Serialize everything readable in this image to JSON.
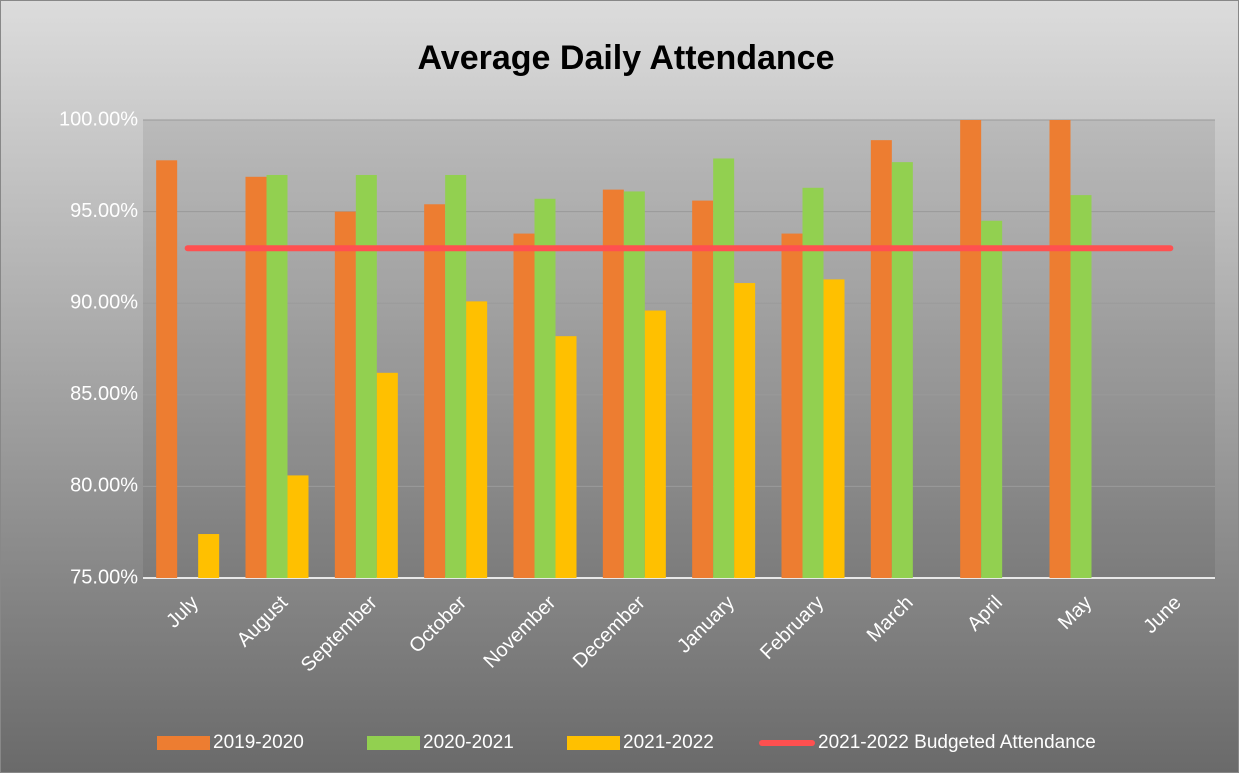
{
  "chart_data": {
    "type": "bar",
    "title": "Average Daily Attendance",
    "categories": [
      "July",
      "August",
      "September",
      "October",
      "November",
      "December",
      "January",
      "February",
      "March",
      "April",
      "May",
      "June"
    ],
    "series": [
      {
        "name": "2019-2020",
        "color": "#ED7D31",
        "values": [
          97.8,
          96.9,
          95.0,
          95.4,
          93.8,
          96.2,
          95.6,
          93.8,
          98.9,
          100,
          100,
          null
        ]
      },
      {
        "name": "2020-2021",
        "color": "#92D050",
        "values": [
          null,
          97.0,
          97.0,
          97.0,
          95.7,
          96.1,
          97.9,
          96.3,
          97.7,
          94.5,
          95.9,
          null
        ]
      },
      {
        "name": "2021-2022",
        "color": "#FFC000",
        "values": [
          77.4,
          80.6,
          86.2,
          90.1,
          88.2,
          89.6,
          91.1,
          91.3,
          null,
          null,
          null,
          null
        ]
      },
      {
        "name": "2021-2022 Budgeted Attendance",
        "color": "#FF5050",
        "type": "line",
        "values": [
          93,
          93,
          93,
          93,
          93,
          93,
          93,
          93,
          93,
          93,
          93,
          93
        ]
      }
    ],
    "ylim": [
      75,
      100
    ],
    "yticks": [
      {
        "value": 75,
        "label": "75.00%"
      },
      {
        "value": 80,
        "label": "80.00%"
      },
      {
        "value": 85,
        "label": "85.00%"
      },
      {
        "value": 90,
        "label": "90.00%"
      },
      {
        "value": 95,
        "label": "95.00%"
      },
      {
        "value": 100,
        "label": "100.00%"
      }
    ],
    "grid": true,
    "legend": "bottom"
  }
}
